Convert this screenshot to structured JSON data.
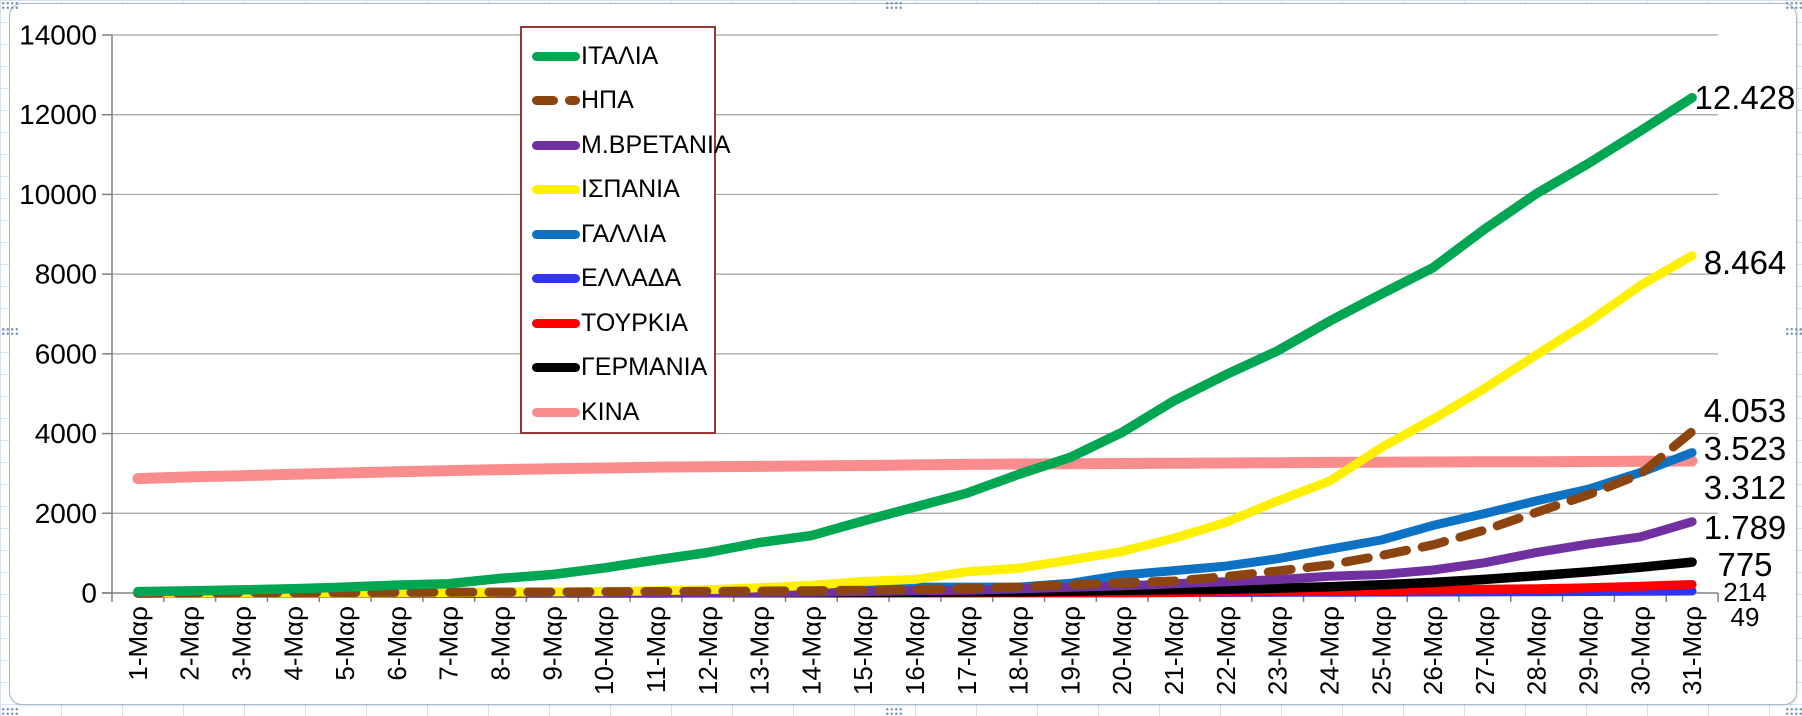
{
  "chart_data": {
    "type": "line",
    "title": "",
    "xlabel": "",
    "ylabel": "",
    "ylim": [
      0,
      14000
    ],
    "y_ticks": [
      0,
      2000,
      4000,
      6000,
      8000,
      10000,
      12000,
      14000
    ],
    "grid": "horizontal-only",
    "legend_position": "inside-top-left-box",
    "legend_border_color": "#953735",
    "x": [
      "1-Μαρ",
      "2-Μαρ",
      "3-Μαρ",
      "4-Μαρ",
      "5-Μαρ",
      "6-Μαρ",
      "7-Μαρ",
      "8-Μαρ",
      "9-Μαρ",
      "10-Μαρ",
      "11-Μαρ",
      "12-Μαρ",
      "13-Μαρ",
      "14-Μαρ",
      "15-Μαρ",
      "16-Μαρ",
      "17-Μαρ",
      "18-Μαρ",
      "19-Μαρ",
      "20-Μαρ",
      "21-Μαρ",
      "22-Μαρ",
      "23-Μαρ",
      "24-Μαρ",
      "25-Μαρ",
      "26-Μαρ",
      "27-Μαρ",
      "28-Μαρ",
      "29-Μαρ",
      "30-Μαρ",
      "31-Μαρ"
    ],
    "series": [
      {
        "name": "ΙΤΑΛΙΑ",
        "color": "#00a651",
        "style": "solid",
        "end_label": "12.428",
        "values": [
          34,
          52,
          79,
          107,
          148,
          197,
          233,
          366,
          463,
          631,
          827,
          1016,
          1266,
          1441,
          1809,
          2158,
          2503,
          2978,
          3405,
          4032,
          4825,
          5476,
          6077,
          6820,
          7503,
          8165,
          9134,
          10023,
          10779,
          11591,
          12428
        ]
      },
      {
        "name": "ΗΠΑ",
        "color": "#8c4510",
        "style": "dashed",
        "end_label": "4.053",
        "values": [
          1,
          6,
          9,
          11,
          12,
          15,
          19,
          22,
          26,
          30,
          38,
          41,
          48,
          57,
          69,
          87,
          110,
          150,
          206,
          256,
          302,
          414,
          553,
          706,
          942,
          1209,
          1581,
          2026,
          2467,
          2978,
          4053
        ]
      },
      {
        "name": "Μ.ΒΡΕΤΑΝΙΑ",
        "color": "#7030a0",
        "style": "solid",
        "end_label": "1.789",
        "values": [
          0,
          0,
          0,
          0,
          1,
          2,
          2,
          3,
          5,
          6,
          8,
          8,
          10,
          21,
          35,
          55,
          71,
          104,
          144,
          177,
          233,
          281,
          335,
          422,
          465,
          578,
          759,
          1019,
          1228,
          1408,
          1789
        ]
      },
      {
        "name": "ΙΣΠΑΝΙΑ",
        "color": "#ffef00",
        "style": "solid",
        "end_label": "8.464",
        "values": [
          0,
          0,
          1,
          2,
          3,
          5,
          10,
          17,
          28,
          35,
          54,
          86,
          133,
          195,
          289,
          342,
          533,
          623,
          830,
          1043,
          1375,
          1772,
          2311,
          2808,
          3647,
          4365,
          5138,
          5982,
          6803,
          7716,
          8464
        ]
      },
      {
        "name": "ΓΑΛΛΙΑ",
        "color": "#0d72c4",
        "style": "solid",
        "end_label": "3.523",
        "values": [
          2,
          3,
          4,
          4,
          6,
          9,
          11,
          19,
          19,
          33,
          48,
          48,
          79,
          91,
          91,
          148,
          148,
          148,
          243,
          450,
          562,
          674,
          860,
          1100,
          1331,
          1696,
          1995,
          2314,
          2606,
          3024,
          3523
        ]
      },
      {
        "name": "ΕΛΛΑΔΑ",
        "color": "#3333f0",
        "style": "solid",
        "end_label": "49",
        "values": [
          0,
          0,
          0,
          0,
          0,
          0,
          0,
          0,
          0,
          0,
          0,
          1,
          1,
          3,
          4,
          4,
          5,
          5,
          6,
          6,
          13,
          15,
          17,
          20,
          22,
          26,
          28,
          32,
          38,
          43,
          49
        ]
      },
      {
        "name": "ΤΟΥΡΚΙΑ",
        "color": "#fe0000",
        "style": "solid",
        "end_label": "214",
        "values": [
          0,
          0,
          0,
          0,
          0,
          0,
          0,
          0,
          0,
          0,
          0,
          0,
          0,
          0,
          0,
          0,
          1,
          2,
          3,
          4,
          9,
          30,
          37,
          44,
          59,
          75,
          92,
          108,
          131,
          168,
          214
        ]
      },
      {
        "name": "ΓΕΡΜΑΝΙΑ",
        "color": "#000000",
        "style": "solid",
        "end_label": "775",
        "values": [
          0,
          0,
          0,
          0,
          0,
          0,
          0,
          0,
          2,
          2,
          3,
          5,
          7,
          9,
          11,
          17,
          24,
          28,
          44,
          67,
          84,
          94,
          123,
          157,
          206,
          267,
          342,
          433,
          533,
          645,
          775
        ]
      },
      {
        "name": "ΚΙΝΑ",
        "color": "#f98d8d",
        "style": "solid",
        "end_label": "3.312",
        "values": [
          2870,
          2912,
          2943,
          2981,
          3012,
          3042,
          3070,
          3097,
          3119,
          3136,
          3158,
          3169,
          3176,
          3189,
          3199,
          3213,
          3226,
          3237,
          3245,
          3248,
          3255,
          3261,
          3270,
          3277,
          3281,
          3287,
          3292,
          3295,
          3300,
          3305,
          3312
        ]
      }
    ]
  }
}
